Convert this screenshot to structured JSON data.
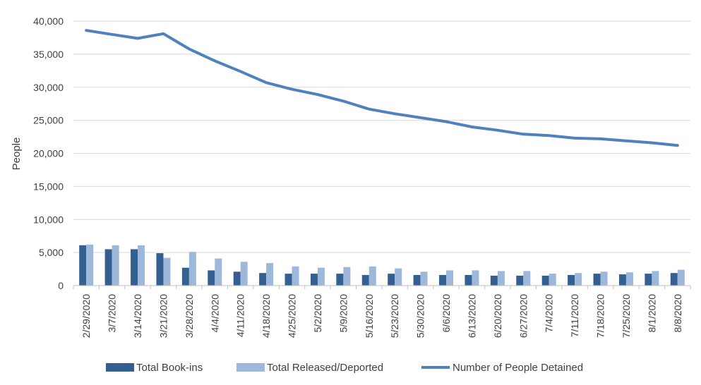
{
  "chart_data": {
    "type": "bar+line",
    "title": "",
    "xlabel": "",
    "ylabel": "People",
    "ylim": [
      0,
      40000
    ],
    "yticks": [
      0,
      5000,
      10000,
      15000,
      20000,
      25000,
      30000,
      35000,
      40000
    ],
    "ytick_labels": [
      "0",
      "5,000",
      "10,000",
      "15,000",
      "20,000",
      "25,000",
      "30,000",
      "35,000",
      "40,000"
    ],
    "grid": true,
    "legend_position": "bottom",
    "categories": [
      "2/29/2020",
      "3/7/2020",
      "3/14/2020",
      "3/21/2020",
      "3/28/2020",
      "4/4/2020",
      "4/11/2020",
      "4/18/2020",
      "4/25/2020",
      "5/2/2020",
      "5/9/2020",
      "5/16/2020",
      "5/23/2020",
      "5/30/2020",
      "6/6/2020",
      "6/13/2020",
      "6/20/2020",
      "6/27/2020",
      "7/4/2020",
      "7/11/2020",
      "7/18/2020",
      "7/25/2020",
      "8/1/2020",
      "8/8/2020"
    ],
    "series": [
      {
        "name": "Total Book-ins",
        "type": "bar",
        "color": "#335f91",
        "values": [
          6100,
          5500,
          5500,
          4900,
          2700,
          2300,
          2100,
          1900,
          1800,
          1800,
          1800,
          1600,
          1800,
          1600,
          1600,
          1600,
          1500,
          1500,
          1500,
          1600,
          1800,
          1700,
          1800,
          1900
        ]
      },
      {
        "name": "Total Released/Deported",
        "type": "bar",
        "color": "#9db8db",
        "values": [
          6200,
          6100,
          6100,
          4200,
          5100,
          4100,
          3600,
          3400,
          2900,
          2700,
          2800,
          2900,
          2600,
          2100,
          2300,
          2300,
          2200,
          2200,
          1800,
          1900,
          2100,
          2000,
          2200,
          2400
        ]
      },
      {
        "name": "Number of People Detained",
        "type": "line",
        "color": "#4f81bd",
        "values": [
          38600,
          38000,
          37400,
          38100,
          35800,
          34000,
          32400,
          30700,
          29700,
          28900,
          27900,
          26700,
          26000,
          25400,
          24800,
          24000,
          23500,
          22900,
          22700,
          22300,
          22200,
          21900,
          21600,
          21200
        ]
      }
    ]
  }
}
